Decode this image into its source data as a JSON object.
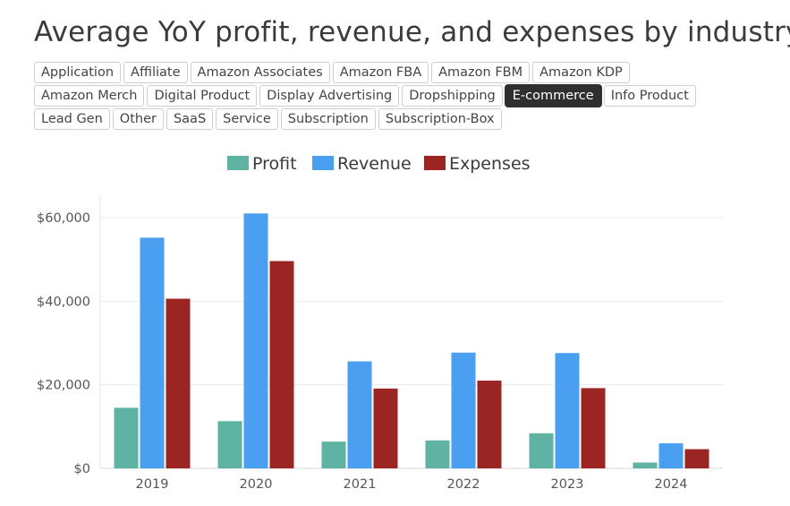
{
  "page": {
    "title": "Average YoY profit, revenue, and expenses by industry"
  },
  "filters": {
    "rows": [
      [
        "Application",
        "Affiliate",
        "Amazon Associates",
        "Amazon FBA",
        "Amazon FBM",
        "Amazon KDP"
      ],
      [
        "Amazon Merch",
        "Digital Product",
        "Display Advertising",
        "Dropshipping",
        "E-commerce",
        "Info Product"
      ],
      [
        "Lead Gen",
        "Other",
        "SaaS",
        "Service",
        "Subscription",
        "Subscription-Box"
      ]
    ],
    "active": "E-commerce"
  },
  "chart_data": {
    "type": "bar",
    "categories": [
      "2019",
      "2020",
      "2021",
      "2022",
      "2023",
      "2024"
    ],
    "series": [
      {
        "name": "Profit",
        "color": "#5fb3a3",
        "values": [
          14500,
          11300,
          6400,
          6700,
          8400,
          1400
        ]
      },
      {
        "name": "Revenue",
        "color": "#4a9ff0",
        "values": [
          55200,
          61000,
          25600,
          27700,
          27600,
          6000
        ]
      },
      {
        "name": "Expenses",
        "color": "#9b2523",
        "values": [
          40600,
          49600,
          19100,
          21000,
          19200,
          4600
        ]
      }
    ],
    "xlabel": "",
    "ylabel": "",
    "ylim": [
      0,
      65000
    ],
    "yticks": [
      0,
      20000,
      40000,
      60000
    ],
    "ytick_labels": [
      "$0",
      "$20,000",
      "$40,000",
      "$60,000"
    ],
    "grid": true,
    "legend": "top-center"
  }
}
